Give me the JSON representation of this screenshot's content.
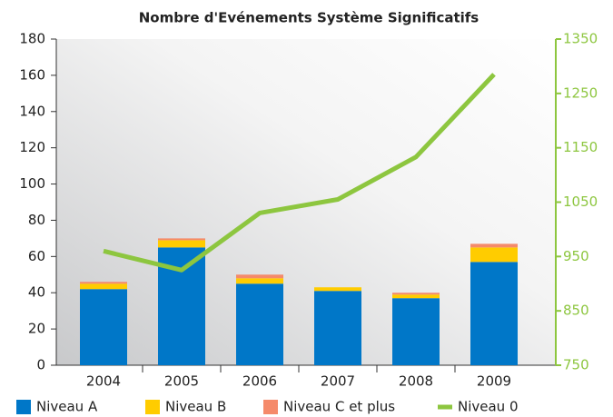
{
  "chart_data": {
    "type": "bar",
    "stacked": true,
    "title": "Nombre d'Evénements Système Significatifs",
    "categories": [
      "2004",
      "2005",
      "2006",
      "2007",
      "2008",
      "2009"
    ],
    "series": [
      {
        "name": "Niveau A",
        "color": "#0077c8",
        "values": [
          42,
          65,
          45,
          41,
          37,
          57
        ]
      },
      {
        "name": "Niveau B",
        "color": "#ffcc00",
        "values": [
          3,
          4,
          3,
          2,
          2,
          8
        ]
      },
      {
        "name": "Niveau C et plus",
        "color": "#f58a6a",
        "values": [
          1,
          1,
          2,
          0,
          1,
          2
        ]
      },
      {
        "name": "Niveau 0",
        "color": "#8dc63f",
        "type": "line",
        "axis": "y2",
        "values": [
          960,
          925,
          1030,
          1055,
          1133,
          1285
        ]
      }
    ],
    "ylim": [
      0,
      180
    ],
    "yticks": [
      0,
      20,
      40,
      60,
      80,
      100,
      120,
      140,
      160,
      180
    ],
    "y2lim": [
      750,
      1350
    ],
    "y2ticks": [
      750,
      850,
      950,
      1050,
      1150,
      1250,
      1350
    ],
    "legend": "bottom"
  }
}
